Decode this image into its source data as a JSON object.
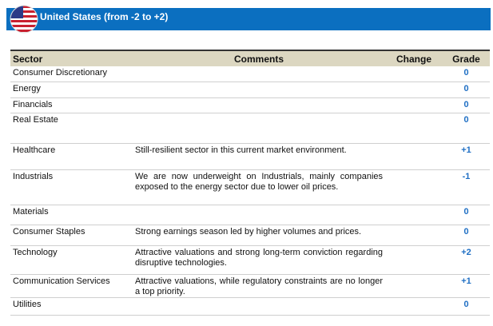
{
  "header": {
    "title": "United States (from -2 to +2)"
  },
  "table": {
    "columns": [
      "Sector",
      "Comments",
      "Change",
      "Grade"
    ],
    "rows": [
      [
        "Consumer Discretionary",
        "",
        "",
        "0"
      ],
      [
        "Energy",
        "",
        "",
        "0"
      ],
      [
        "Financials",
        "",
        "",
        "0"
      ],
      [
        "Real Estate",
        "",
        "",
        "0"
      ],
      [
        "Healthcare",
        "Still-resilient sector in this current market environment.",
        "",
        "+1"
      ],
      [
        "Industrials",
        "We are now underweight on Industrials, mainly companies exposed to the energy sector due to lower oil prices.",
        "",
        "-1"
      ],
      [
        "Materials",
        "",
        "",
        "0"
      ],
      [
        "Consumer Staples",
        "Strong earnings season led by higher volumes and prices.",
        "",
        "0"
      ],
      [
        "Technology",
        "Attractive valuations and strong long-term conviction regarding disruptive technologies.",
        "",
        "+2"
      ],
      [
        "Communication Services",
        "Attractive valuations, while regulatory constraints are no longer a top priority.",
        "",
        "+1"
      ],
      [
        "Utilities",
        "",
        "",
        "0"
      ]
    ]
  }
}
